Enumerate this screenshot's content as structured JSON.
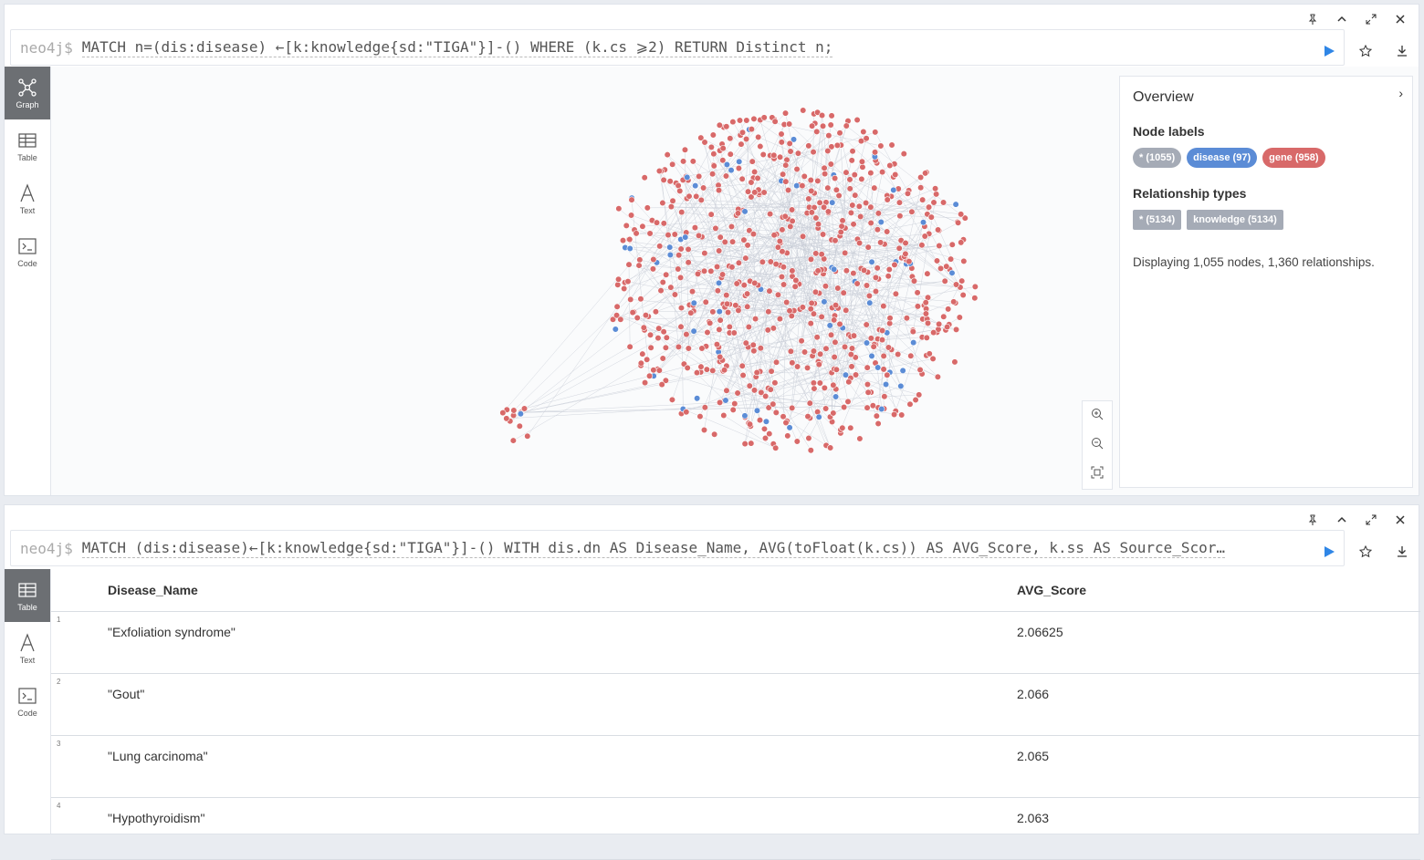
{
  "frame1": {
    "prompt": "neo4j$",
    "query": "MATCH n=(dis:disease) ←[k:knowledge{sd:\"TIGA\"}]-() WHERE (k.cs  ⩾2) RETURN Distinct n;",
    "nav": [
      {
        "label": "Graph",
        "icon": "graph-icon"
      },
      {
        "label": "Table",
        "icon": "table-icon"
      },
      {
        "label": "Text",
        "icon": "text-icon"
      },
      {
        "label": "Code",
        "icon": "code-icon"
      }
    ],
    "overview": {
      "title": "Overview",
      "node_labels_heading": "Node labels",
      "node_labels": [
        {
          "text": "* (1055)",
          "color": "#a5abb6"
        },
        {
          "text": "disease (97)",
          "color": "#5b8cd6"
        },
        {
          "text": "gene (958)",
          "color": "#d86969"
        }
      ],
      "relationship_heading": "Relationship types",
      "relationship_types": [
        {
          "text": "* (5134)"
        },
        {
          "text": "knowledge (5134)"
        }
      ],
      "summary": "Displaying 1,055 nodes, 1,360 relationships."
    },
    "colors": {
      "disease": "#5b8cd6",
      "gene": "#d86969"
    }
  },
  "frame2": {
    "prompt": "neo4j$",
    "query": "MATCH (dis:disease)←[k:knowledge{sd:\"TIGA\"}]-() WITH dis.dn AS Disease_Name, AVG(toFloat(k.cs)) AS AVG_Score, k.ss AS Source_Scor…",
    "nav": [
      {
        "label": "Table",
        "icon": "table-icon"
      },
      {
        "label": "Text",
        "icon": "text-icon"
      },
      {
        "label": "Code",
        "icon": "code-icon"
      }
    ],
    "table": {
      "columns": [
        "Disease_Name",
        "AVG_Score"
      ],
      "rows": [
        {
          "index": "1",
          "name": "\"Exfoliation syndrome\"",
          "score": "2.06625"
        },
        {
          "index": "2",
          "name": "\"Gout\"",
          "score": "2.066"
        },
        {
          "index": "3",
          "name": "\"Lung carcinoma\"",
          "score": "2.065"
        },
        {
          "index": "4",
          "name": "\"Hypothyroidism\"",
          "score": "2.063"
        }
      ]
    }
  }
}
